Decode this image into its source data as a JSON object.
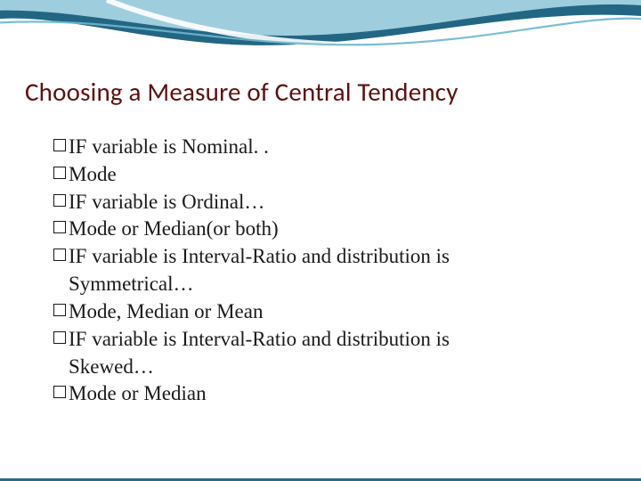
{
  "slide": {
    "title": "Choosing  a Measure of Central Tendency",
    "title_color": "#5e0f0f",
    "title_fontsize": 29,
    "title_fontweight": "400",
    "body_fontsize": 23,
    "body_color": "#1a1a1a",
    "line_height": 1.34,
    "bullet_box_size": 14,
    "bullets": [
      {
        "text": "IF variable is Nominal. ."
      },
      {
        "text": "Mode"
      },
      {
        "text": "IF variable is Ordinal…"
      },
      {
        "text": "Mode or Median(or both)"
      },
      {
        "text": "IF variable is Interval-Ratio and distribution is",
        "cont": "Symmetrical…"
      },
      {
        "text": "Mode, Median or Mean"
      },
      {
        "text": "IF variable is Interval-Ratio and distribution is",
        "cont": "Skewed…"
      },
      {
        "text": "Mode or Median"
      }
    ]
  },
  "decor": {
    "wave_dark": "#236684",
    "wave_light": "#b4e0ec",
    "wave_mid": "#6db6cf",
    "rule_color": "#2a6a88"
  }
}
